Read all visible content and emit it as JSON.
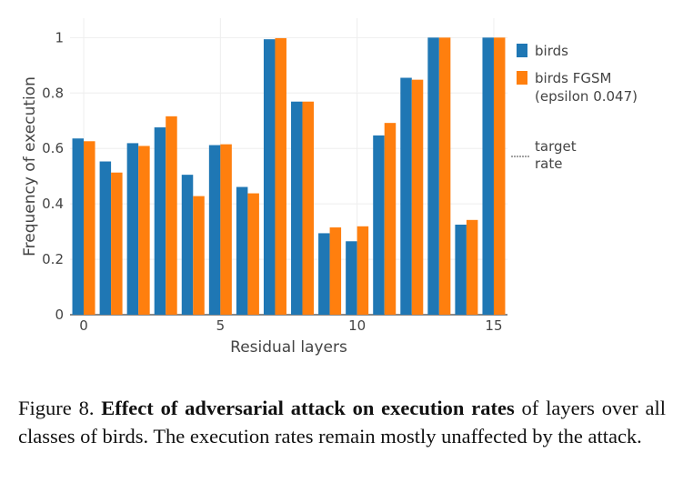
{
  "chart_data": {
    "type": "bar",
    "categories": [
      0,
      1,
      2,
      3,
      4,
      5,
      6,
      7,
      8,
      9,
      10,
      11,
      12,
      13,
      14,
      15
    ],
    "series": [
      {
        "name": "birds",
        "color": "#1f77b4",
        "values": [
          0.636,
          0.553,
          0.619,
          0.676,
          0.505,
          0.612,
          0.461,
          0.994,
          0.769,
          0.294,
          0.265,
          0.647,
          0.855,
          1.0,
          0.325,
          1.0
        ]
      },
      {
        "name": "birds FGSM (epsilon 0.047)",
        "color": "#ff7f0e",
        "values": [
          0.626,
          0.513,
          0.609,
          0.716,
          0.428,
          0.615,
          0.438,
          0.998,
          0.769,
          0.315,
          0.319,
          0.692,
          0.848,
          1.0,
          0.342,
          1.0
        ]
      }
    ],
    "legend_lines": [
      [
        "birds"
      ],
      [
        "birds FGSM",
        "(epsilon 0.047)"
      ]
    ],
    "extra_legend": {
      "lines": [
        "target",
        "rate"
      ],
      "color": "#444444"
    },
    "xlabel": "Residual layers",
    "ylabel": "Frequency of execution",
    "ylim": [
      0,
      1.07
    ],
    "yticks": [
      0,
      0.2,
      0.4,
      0.6,
      0.8,
      1
    ],
    "ytick_labels": [
      "0",
      "0.2",
      "0.4",
      "0.6",
      "0.8",
      "1"
    ],
    "xticks": [
      0,
      5,
      10,
      15
    ],
    "xtick_labels": [
      "0",
      "5",
      "10",
      "15"
    ],
    "grid": true,
    "legend_position": "right"
  },
  "caption": {
    "prefix": "Figure 8. ",
    "bold": "Effect of adversarial attack on execution rates",
    "rest": " of layers over all classes of birds.  The execution rates remain mostly unaffected by the attack."
  }
}
